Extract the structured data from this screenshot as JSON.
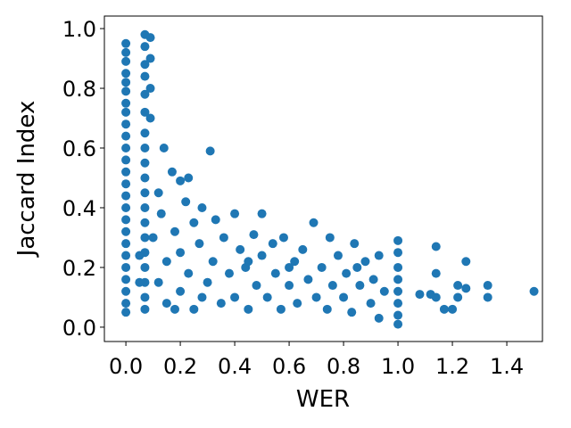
{
  "chart_data": {
    "type": "scatter",
    "x_label": "WER",
    "y_label": "Jaccard Index",
    "color": "#1f77b4",
    "xlim": [
      -0.079,
      1.531
    ],
    "ylim": [
      -0.048,
      1.042
    ],
    "xticks": [
      {
        "value": 0,
        "label": "0.0"
      },
      {
        "value": 0.2,
        "label": "0.2"
      },
      {
        "value": 0.4,
        "label": "0.4"
      },
      {
        "value": 0.6,
        "label": "0.6"
      },
      {
        "value": 0.8,
        "label": "0.8"
      },
      {
        "value": 1,
        "label": "1.0"
      },
      {
        "value": 1.2,
        "label": "1.2"
      },
      {
        "value": 1.4,
        "label": "1.4"
      }
    ],
    "yticks": [
      {
        "value": 0,
        "label": "0.0"
      },
      {
        "value": 0.2,
        "label": "0.2"
      },
      {
        "value": 0.4,
        "label": "0.4"
      },
      {
        "value": 0.6,
        "label": "0.6"
      },
      {
        "value": 0.8,
        "label": "0.8"
      },
      {
        "value": 1,
        "label": "1.0"
      }
    ],
    "x": [
      0,
      0,
      0,
      0,
      0,
      0,
      0,
      0,
      0,
      0,
      0,
      0,
      0,
      0,
      0,
      0,
      0,
      0,
      0,
      0,
      0,
      0,
      0,
      0,
      0,
      0.07,
      0.07,
      0.07,
      0.07,
      0.07,
      0.07,
      0.07,
      0.07,
      0.07,
      0.07,
      0.07,
      0.07,
      0.07,
      0.07,
      0.07,
      0.07,
      0.07,
      0.07,
      0.07,
      0.09,
      0.09,
      0.09,
      0.09,
      0.05,
      0.05,
      0.1,
      0.12,
      0.13,
      0.15,
      0.15,
      0.17,
      0.18,
      0.2,
      0.2,
      0.22,
      0.23,
      0.25,
      0.25,
      0.27,
      0.28,
      0.3,
      0.32,
      0.33,
      0.35,
      0.36,
      0.38,
      0.4,
      0.4,
      0.42,
      0.44,
      0.45,
      0.47,
      0.48,
      0.5,
      0.5,
      0.52,
      0.54,
      0.55,
      0.57,
      0.58,
      0.6,
      0.62,
      0.63,
      0.65,
      0.67,
      0.69,
      0.7,
      0.72,
      0.74,
      0.75,
      0.76,
      0.78,
      0.8,
      0.81,
      0.83,
      0.84,
      0.86,
      0.88,
      0.9,
      0.91,
      0.93,
      0.93,
      0.95,
      0.14,
      0.31,
      0.23,
      0.2,
      0.12,
      0.18,
      0.28,
      0.45,
      0.6,
      0.85,
      1,
      1,
      1,
      1,
      1,
      1,
      1,
      1,
      1.08,
      1.12,
      1.14,
      1.14,
      1.14,
      1.17,
      1.2,
      1.22,
      1.22,
      1.25,
      1.25,
      1.33,
      1.33,
      1.5
    ],
    "values": [
      0.95,
      0.92,
      0.89,
      0.85,
      0.82,
      0.79,
      0.75,
      0.72,
      0.68,
      0.64,
      0.6,
      0.56,
      0.52,
      0.48,
      0.44,
      0.4,
      0.36,
      0.32,
      0.28,
      0.24,
      0.2,
      0.16,
      0.12,
      0.08,
      0.05,
      0.98,
      0.94,
      0.88,
      0.84,
      0.78,
      0.72,
      0.65,
      0.6,
      0.55,
      0.5,
      0.45,
      0.4,
      0.35,
      0.3,
      0.25,
      0.2,
      0.15,
      0.1,
      0.06,
      0.97,
      0.9,
      0.8,
      0.7,
      0.24,
      0.15,
      0.3,
      0.45,
      0.38,
      0.22,
      0.08,
      0.52,
      0.32,
      0.25,
      0.12,
      0.42,
      0.18,
      0.35,
      0.06,
      0.28,
      0.4,
      0.15,
      0.22,
      0.36,
      0.08,
      0.3,
      0.18,
      0.38,
      0.1,
      0.26,
      0.2,
      0.06,
      0.31,
      0.14,
      0.24,
      0.38,
      0.1,
      0.28,
      0.18,
      0.06,
      0.3,
      0.14,
      0.22,
      0.08,
      0.26,
      0.16,
      0.35,
      0.1,
      0.2,
      0.06,
      0.3,
      0.14,
      0.24,
      0.1,
      0.18,
      0.05,
      0.28,
      0.14,
      0.22,
      0.08,
      0.16,
      0.03,
      0.24,
      0.12,
      0.6,
      0.59,
      0.5,
      0.49,
      0.15,
      0.06,
      0.1,
      0.22,
      0.2,
      0.2,
      0.29,
      0.25,
      0.2,
      0.16,
      0.12,
      0.08,
      0.04,
      0.01,
      0.11,
      0.11,
      0.27,
      0.18,
      0.1,
      0.06,
      0.06,
      0.14,
      0.1,
      0.22,
      0.13,
      0.14,
      0.1,
      0.12
    ]
  }
}
